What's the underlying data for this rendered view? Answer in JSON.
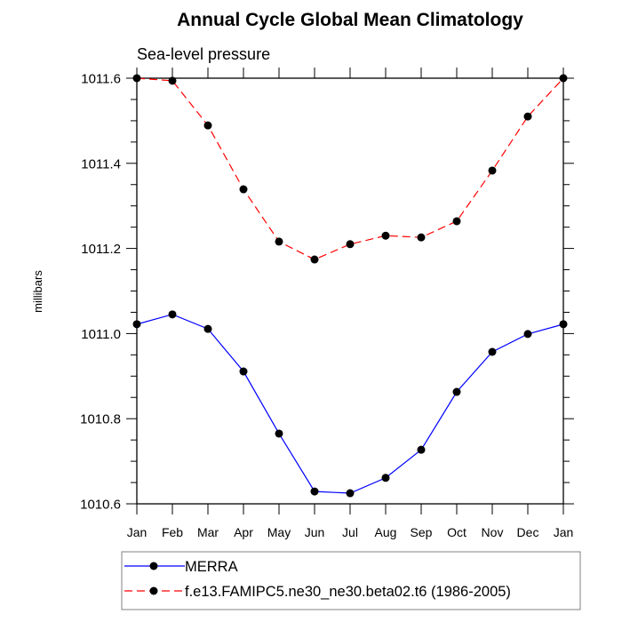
{
  "chart_data": {
    "type": "line",
    "title": "Annual Cycle Global Mean Climatology",
    "subtitle": "Sea-level pressure",
    "xlabel": "",
    "ylabel": "millibars",
    "categories": [
      "Jan",
      "Feb",
      "Mar",
      "Apr",
      "May",
      "Jun",
      "Jul",
      "Aug",
      "Sep",
      "Oct",
      "Nov",
      "Dec",
      "Jan"
    ],
    "ylim": [
      1010.6,
      1011.6
    ],
    "yticks": [
      1010.6,
      1010.8,
      1011.0,
      1011.2,
      1011.4,
      1011.6
    ],
    "ytick_labels": [
      "1010.6",
      "1010.8",
      "1011.0",
      "1011.2",
      "1011.4",
      "1011.6"
    ],
    "yminor_step": 0.05,
    "grid": false,
    "legend_position": "bottom",
    "series": [
      {
        "name": "MERRA",
        "color": "#0000ff",
        "line_style": "solid",
        "marker": "filled-circle",
        "marker_color": "#000000",
        "values": [
          1011.022,
          1011.045,
          1011.011,
          1010.911,
          1010.765,
          1010.629,
          1010.625,
          1010.661,
          1010.727,
          1010.863,
          1010.957,
          1010.999,
          1011.022
        ]
      },
      {
        "name": "f.e13.FAMIPC5.ne30_ne30.beta02.t6 (1986-2005)",
        "color": "#ff0000",
        "line_style": "dashed",
        "marker": "filled-circle",
        "marker_color": "#000000",
        "values": [
          1011.6,
          1011.594,
          1011.489,
          1011.339,
          1011.216,
          1011.174,
          1011.21,
          1011.23,
          1011.226,
          1011.264,
          1011.383,
          1011.51,
          1011.6
        ]
      }
    ]
  }
}
